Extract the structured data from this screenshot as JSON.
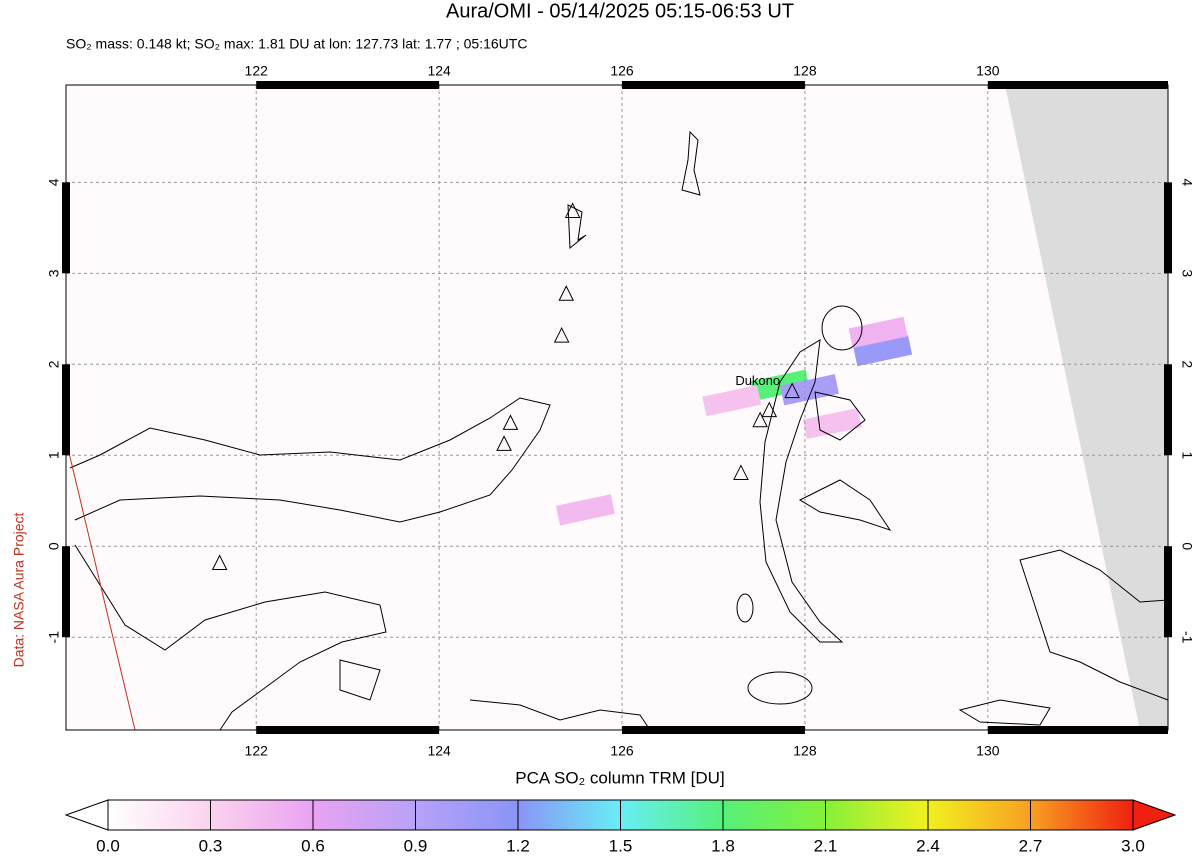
{
  "map": {
    "title": "Aura/OMI - 05/14/2025 05:15-06:53 UT",
    "subtitle": "SO₂ mass: 0.148 kt; SO₂ max: 1.81 DU at lon: 127.73 lat: 1.77 ; 05:16UTC",
    "credit": "Data: NASA Aura Project",
    "xlim": [
      119.92,
      131.97
    ],
    "ylim": [
      -2.02,
      5.07
    ],
    "xticks": [
      122,
      124,
      126,
      128,
      130
    ],
    "yticks": [
      -1,
      0,
      1,
      2,
      3,
      4
    ],
    "volcano_label": "Dukono",
    "volcanoes": [
      {
        "lon": 121.6,
        "lat": -0.19
      },
      {
        "lon": 124.71,
        "lat": 1.12
      },
      {
        "lon": 124.78,
        "lat": 1.35
      },
      {
        "lon": 125.34,
        "lat": 2.31
      },
      {
        "lon": 125.39,
        "lat": 2.77
      },
      {
        "lon": 125.46,
        "lat": 3.68
      },
      {
        "lon": 127.3,
        "lat": 0.8
      },
      {
        "lon": 127.51,
        "lat": 1.38
      },
      {
        "lon": 127.61,
        "lat": 1.49
      },
      {
        "lon": 127.86,
        "lat": 1.7
      }
    ],
    "so2_pixels": [
      {
        "lon": 127.73,
        "lat": 1.77,
        "value": 1.81
      },
      {
        "lon": 128.05,
        "lat": 1.72,
        "value": 1.0
      },
      {
        "lon": 128.85,
        "lat": 2.15,
        "value": 1.1
      },
      {
        "lon": 128.8,
        "lat": 2.35,
        "value": 0.5
      },
      {
        "lon": 127.2,
        "lat": 1.6,
        "value": 0.4
      },
      {
        "lon": 125.6,
        "lat": 0.4,
        "value": 0.45
      },
      {
        "lon": 128.3,
        "lat": 1.35,
        "value": 0.4
      }
    ],
    "colorbar": {
      "title": "PCA SO₂ column TRM [DU]",
      "clim": [
        0,
        3
      ],
      "ticks": [
        {
          "value": 0,
          "label": "0.0"
        },
        0.3,
        0.6,
        0.9,
        1.2,
        1.5,
        1.8,
        2.1,
        2.4,
        2.7,
        {
          "value": 3,
          "label": "3.0"
        }
      ],
      "colors": [
        "#ffffff",
        "#fbd2ee",
        "#eaa2f2",
        "#b7a2f8",
        "#8a94f6",
        "#68eef6",
        "#55f07a",
        "#86f03a",
        "#f2f020",
        "#f8a022",
        "#f02010"
      ]
    }
  }
}
